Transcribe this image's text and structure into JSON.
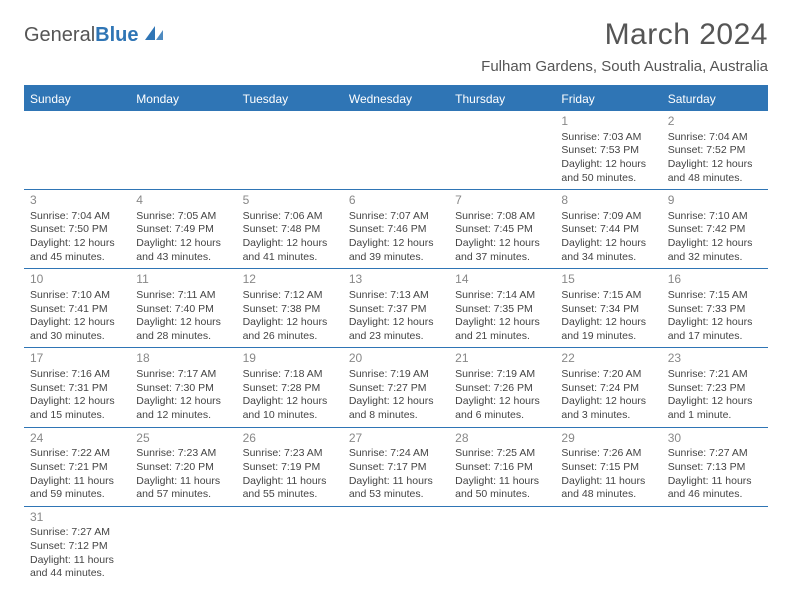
{
  "logo": {
    "general": "General",
    "blue": "Blue"
  },
  "title": "March 2024",
  "location": "Fulham Gardens, South Australia, Australia",
  "colors": {
    "accent": "#2f75b5",
    "text": "#444",
    "muted": "#888",
    "bg": "#ffffff"
  },
  "weekdays": [
    "Sunday",
    "Monday",
    "Tuesday",
    "Wednesday",
    "Thursday",
    "Friday",
    "Saturday"
  ],
  "weeks": [
    [
      null,
      null,
      null,
      null,
      null,
      {
        "n": "1",
        "sr": "7:03 AM",
        "ss": "7:53 PM",
        "dl": "12 hours and 50 minutes."
      },
      {
        "n": "2",
        "sr": "7:04 AM",
        "ss": "7:52 PM",
        "dl": "12 hours and 48 minutes."
      }
    ],
    [
      {
        "n": "3",
        "sr": "7:04 AM",
        "ss": "7:50 PM",
        "dl": "12 hours and 45 minutes."
      },
      {
        "n": "4",
        "sr": "7:05 AM",
        "ss": "7:49 PM",
        "dl": "12 hours and 43 minutes."
      },
      {
        "n": "5",
        "sr": "7:06 AM",
        "ss": "7:48 PM",
        "dl": "12 hours and 41 minutes."
      },
      {
        "n": "6",
        "sr": "7:07 AM",
        "ss": "7:46 PM",
        "dl": "12 hours and 39 minutes."
      },
      {
        "n": "7",
        "sr": "7:08 AM",
        "ss": "7:45 PM",
        "dl": "12 hours and 37 minutes."
      },
      {
        "n": "8",
        "sr": "7:09 AM",
        "ss": "7:44 PM",
        "dl": "12 hours and 34 minutes."
      },
      {
        "n": "9",
        "sr": "7:10 AM",
        "ss": "7:42 PM",
        "dl": "12 hours and 32 minutes."
      }
    ],
    [
      {
        "n": "10",
        "sr": "7:10 AM",
        "ss": "7:41 PM",
        "dl": "12 hours and 30 minutes."
      },
      {
        "n": "11",
        "sr": "7:11 AM",
        "ss": "7:40 PM",
        "dl": "12 hours and 28 minutes."
      },
      {
        "n": "12",
        "sr": "7:12 AM",
        "ss": "7:38 PM",
        "dl": "12 hours and 26 minutes."
      },
      {
        "n": "13",
        "sr": "7:13 AM",
        "ss": "7:37 PM",
        "dl": "12 hours and 23 minutes."
      },
      {
        "n": "14",
        "sr": "7:14 AM",
        "ss": "7:35 PM",
        "dl": "12 hours and 21 minutes."
      },
      {
        "n": "15",
        "sr": "7:15 AM",
        "ss": "7:34 PM",
        "dl": "12 hours and 19 minutes."
      },
      {
        "n": "16",
        "sr": "7:15 AM",
        "ss": "7:33 PM",
        "dl": "12 hours and 17 minutes."
      }
    ],
    [
      {
        "n": "17",
        "sr": "7:16 AM",
        "ss": "7:31 PM",
        "dl": "12 hours and 15 minutes."
      },
      {
        "n": "18",
        "sr": "7:17 AM",
        "ss": "7:30 PM",
        "dl": "12 hours and 12 minutes."
      },
      {
        "n": "19",
        "sr": "7:18 AM",
        "ss": "7:28 PM",
        "dl": "12 hours and 10 minutes."
      },
      {
        "n": "20",
        "sr": "7:19 AM",
        "ss": "7:27 PM",
        "dl": "12 hours and 8 minutes."
      },
      {
        "n": "21",
        "sr": "7:19 AM",
        "ss": "7:26 PM",
        "dl": "12 hours and 6 minutes."
      },
      {
        "n": "22",
        "sr": "7:20 AM",
        "ss": "7:24 PM",
        "dl": "12 hours and 3 minutes."
      },
      {
        "n": "23",
        "sr": "7:21 AM",
        "ss": "7:23 PM",
        "dl": "12 hours and 1 minute."
      }
    ],
    [
      {
        "n": "24",
        "sr": "7:22 AM",
        "ss": "7:21 PM",
        "dl": "11 hours and 59 minutes."
      },
      {
        "n": "25",
        "sr": "7:23 AM",
        "ss": "7:20 PM",
        "dl": "11 hours and 57 minutes."
      },
      {
        "n": "26",
        "sr": "7:23 AM",
        "ss": "7:19 PM",
        "dl": "11 hours and 55 minutes."
      },
      {
        "n": "27",
        "sr": "7:24 AM",
        "ss": "7:17 PM",
        "dl": "11 hours and 53 minutes."
      },
      {
        "n": "28",
        "sr": "7:25 AM",
        "ss": "7:16 PM",
        "dl": "11 hours and 50 minutes."
      },
      {
        "n": "29",
        "sr": "7:26 AM",
        "ss": "7:15 PM",
        "dl": "11 hours and 48 minutes."
      },
      {
        "n": "30",
        "sr": "7:27 AM",
        "ss": "7:13 PM",
        "dl": "11 hours and 46 minutes."
      }
    ],
    [
      {
        "n": "31",
        "sr": "7:27 AM",
        "ss": "7:12 PM",
        "dl": "11 hours and 44 minutes."
      },
      null,
      null,
      null,
      null,
      null,
      null
    ]
  ],
  "labels": {
    "sunrise": "Sunrise: ",
    "sunset": "Sunset: ",
    "daylight": "Daylight: "
  }
}
